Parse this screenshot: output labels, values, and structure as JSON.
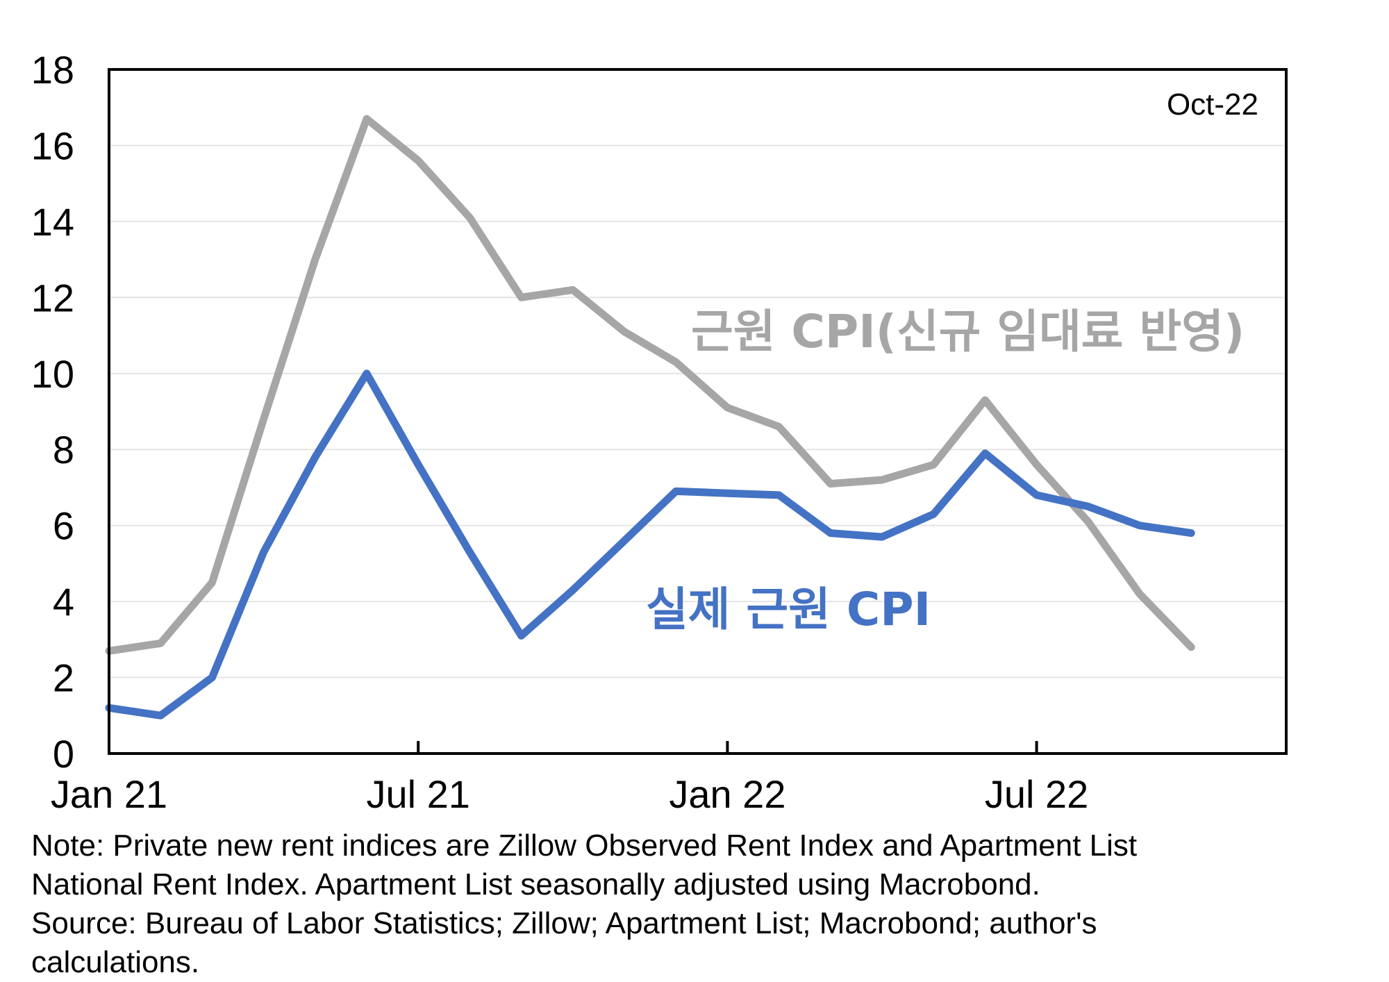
{
  "chart_data": {
    "type": "line",
    "x": [
      "Jan 21",
      "Feb 21",
      "Mar 21",
      "Apr 21",
      "May 21",
      "Jun 21",
      "Jul 21",
      "Aug 21",
      "Sep 21",
      "Oct 21",
      "Nov 21",
      "Dec 21",
      "Jan 22",
      "Feb 22",
      "Mar 22",
      "Apr 22",
      "May 22",
      "Jun 22",
      "Jul 22",
      "Aug 22",
      "Sep 22",
      "Oct 22"
    ],
    "x_tick_labels": [
      "Jan 21",
      "Jul 21",
      "Jan 22",
      "Jul 22"
    ],
    "y_ticks": [
      0,
      2,
      4,
      6,
      8,
      10,
      12,
      14,
      16,
      18
    ],
    "ylim": [
      0,
      18
    ],
    "series": [
      {
        "name": "근원 CPI(신규 임대료 반영)",
        "color": "#a6a6a6",
        "values": [
          2.7,
          2.9,
          4.5,
          8.8,
          13.0,
          16.7,
          15.6,
          14.1,
          12.0,
          12.2,
          11.1,
          10.3,
          9.1,
          8.6,
          7.1,
          7.2,
          7.6,
          9.3,
          7.6,
          6.1,
          4.2,
          2.8
        ]
      },
      {
        "name": "실제 근원 CPI",
        "color": "#4472c4",
        "values": [
          1.2,
          1.0,
          2.0,
          5.3,
          7.8,
          10.0,
          7.6,
          5.3,
          3.1,
          4.3,
          5.6,
          6.9,
          6.85,
          6.8,
          5.8,
          5.7,
          6.3,
          7.9,
          6.8,
          6.5,
          6.0,
          5.8
        ]
      }
    ],
    "annotation": "Oct-22",
    "grid": true
  },
  "note_lines": [
    "Note: Private new rent indices are Zillow Observed Rent Index and Apartment List",
    "National Rent Index. Apartment List seasonally adjusted using Macrobond.",
    "Source: Bureau of Labor Statistics; Zillow; Apartment List; Macrobond; author's",
    "calculations."
  ]
}
